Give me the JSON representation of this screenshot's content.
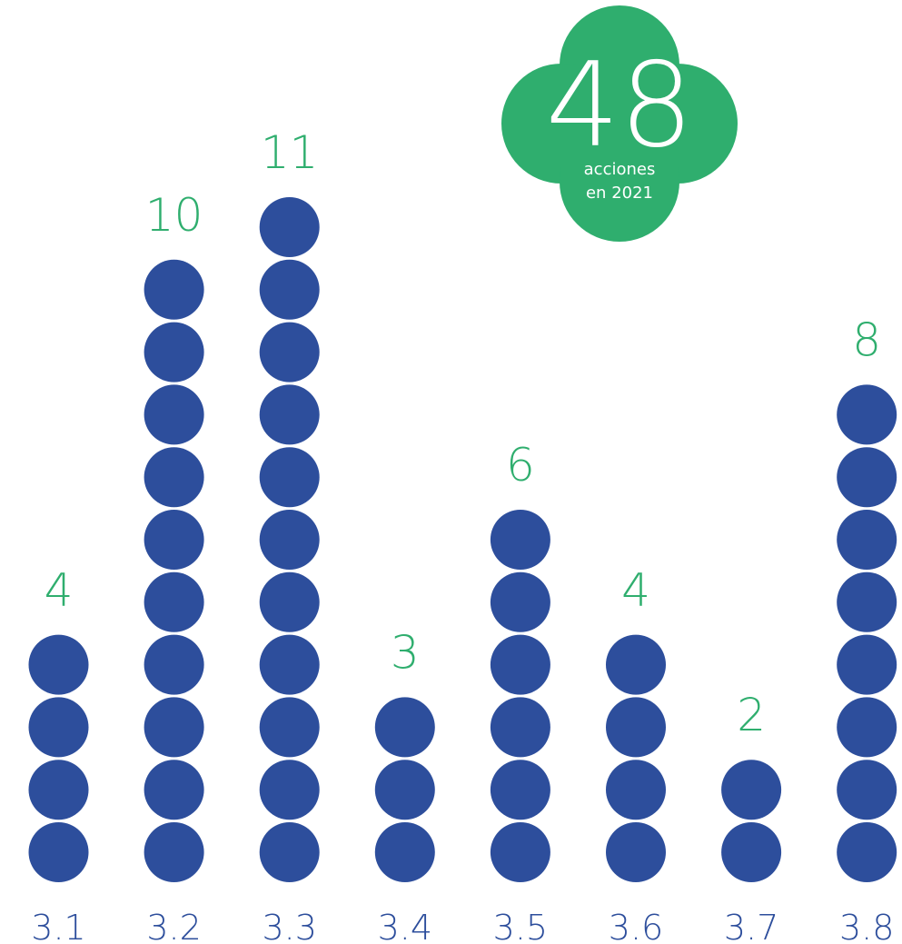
{
  "colors": {
    "dot": "#2d4e9c",
    "value_label": "#2fae6e",
    "category_label": "#2d4e9c",
    "badge": "#2fae6e",
    "badge_text": "#ffffff"
  },
  "badge": {
    "number": "48",
    "caption_line1": "acciones",
    "caption_line2": "en 2021"
  },
  "chart_data": {
    "type": "bar",
    "title": "",
    "xlabel": "",
    "ylabel": "",
    "categories": [
      "3.1",
      "3.2",
      "3.3",
      "3.4",
      "3.5",
      "3.6",
      "3.7",
      "3.8"
    ],
    "values": [
      4,
      10,
      11,
      3,
      6,
      4,
      2,
      8
    ],
    "ylim": [
      0,
      11
    ],
    "grid": false,
    "legend": "none"
  }
}
